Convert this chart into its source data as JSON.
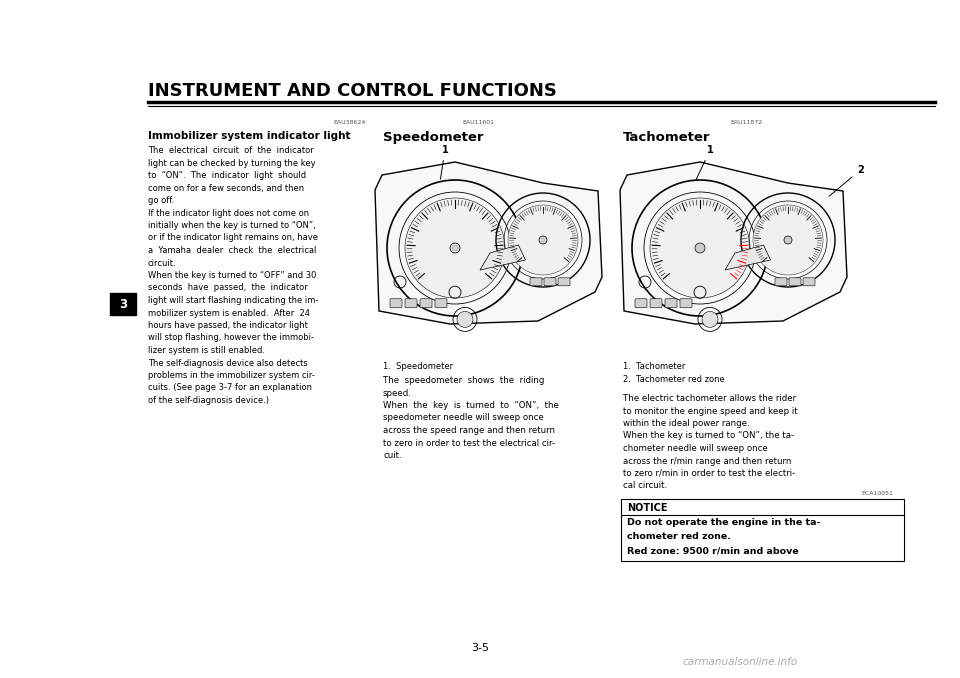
{
  "bg_color": "#ffffff",
  "page_width": 9.6,
  "page_height": 6.78,
  "title": "INSTRUMENT AND CONTROL FUNCTIONS",
  "title_fontsize": 12.5,
  "title_color": "#000000",
  "page_number": "3-5",
  "chapter_num": "3",
  "section1_code": "EAU38624",
  "section1_title": "Immobilizer system indicator light",
  "section1_body_lines": [
    "The  electrical  circuit  of  the  indicator",
    "light can be checked by turning the key",
    "to  “ON”.  The  indicator  light  should",
    "come on for a few seconds, and then",
    "go off.",
    "If the indicator light does not come on",
    "initially when the key is turned to “ON”,",
    "or if the indicator light remains on, have",
    "a  Yamaha  dealer  check  the  electrical",
    "circuit.",
    "When the key is turned to “OFF” and 30",
    "seconds  have  passed,  the  indicator",
    "light will start flashing indicating the im-",
    "mobilizer system is enabled.  After  24",
    "hours have passed, the indicator light",
    "will stop flashing, however the immobi-",
    "lizer system is still enabled.",
    "The self-diagnosis device also detects",
    "problems in the immobilizer system cir-",
    "cuits. (See page 3-7 for an explanation",
    "of the self-diagnosis device.)"
  ],
  "section2_code": "EAU11601",
  "section2_title": "Speedometer",
  "section2_caption": "1.  Speedometer",
  "section2_body_lines": [
    "The  speedometer  shows  the  riding",
    "speed.",
    "When  the  key  is  turned  to  “ON”,  the",
    "speedometer needle will sweep once",
    "across the speed range and then return",
    "to zero in order to test the electrical cir-",
    "cuit."
  ],
  "section3_code": "EAU11872",
  "section3_title": "Tachometer",
  "section3_caption1": "1.  Tachometer",
  "section3_caption2": "2.  Tachometer red zone",
  "section3_body_lines": [
    "The electric tachometer allows the rider",
    "to monitor the engine speed and keep it",
    "within the ideal power range.",
    "When the key is turned to “ON”, the ta-",
    "chometer needle will sweep once",
    "across the r/min range and then return",
    "to zero r/min in order to test the electri-",
    "cal circuit."
  ],
  "notice_code": "ECA10051",
  "notice_title": "NOTICE",
  "notice_body_lines": [
    "Do not operate the engine in the ta-",
    "chometer red zone.",
    "Red zone: 9500 r/min and above"
  ],
  "watermark": "carmanualsonline.info"
}
